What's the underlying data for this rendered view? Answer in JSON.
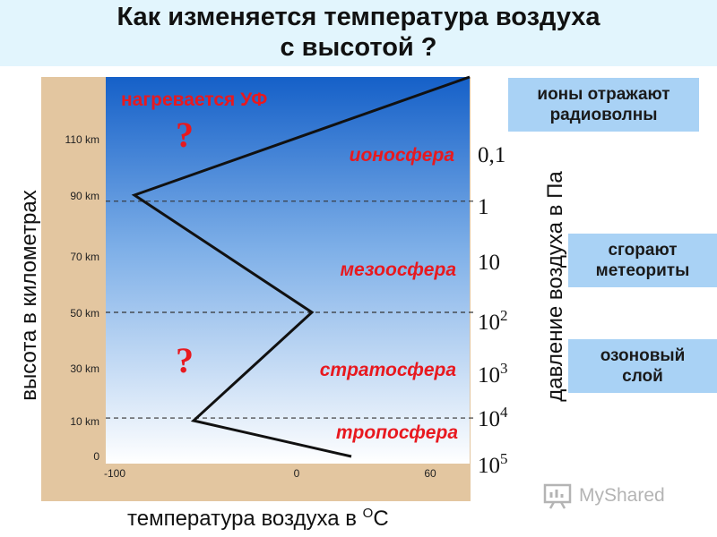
{
  "title": {
    "line1": "Как изменяется температура воздуха",
    "line2": "с высотой ?"
  },
  "diagram": {
    "y_axis_label": "высота в километрах",
    "x_axis_label": "температура воздуха в",
    "x_axis_unit_sup": "О",
    "x_axis_unit": "С",
    "pressure_axis_label": "давление воздуха в Па",
    "altitude_ticks": [
      "0",
      "10 km",
      "30 km",
      "50 km",
      "70 km",
      "90 km",
      "110 km"
    ],
    "temperature_ticks": [
      "-100",
      "0",
      "60"
    ],
    "layers": [
      "ионосфера",
      "мезоосфера",
      "стратосфера",
      "тропосфера"
    ],
    "uv_label": "нагревается УФ",
    "question_mark": "?",
    "temperature_profile": [
      {
        "temperature": 20,
        "altitude_km": 0
      },
      {
        "temperature": -60,
        "altitude_km": 10
      },
      {
        "temperature": 0,
        "altitude_km": 50
      },
      {
        "temperature": -90,
        "altitude_km": 90
      },
      {
        "temperature": 80,
        "altitude_km": 135
      }
    ],
    "boundary_altitudes_km": [
      11,
      50,
      88
    ],
    "pressure_labels": [
      {
        "base": "0,1",
        "exp": ""
      },
      {
        "base": "1",
        "exp": ""
      },
      {
        "base": "10",
        "exp": ""
      },
      {
        "base": "10",
        "exp": "2"
      },
      {
        "base": "10",
        "exp": "3"
      },
      {
        "base": "10",
        "exp": "4"
      },
      {
        "base": "10",
        "exp": "5"
      }
    ],
    "boxes": {
      "ions": [
        "ионы отражают",
        "радиоволны"
      ],
      "meteors": [
        "сгорают",
        "метеориты"
      ],
      "ozone": [
        "озоновый",
        "слой"
      ]
    },
    "colors": {
      "frame": "#e3c6a0",
      "sky_top": "#1560c8",
      "sky_bottom": "#ffffff",
      "layer_text": "#e8191f",
      "box": "#a9d2f5"
    }
  },
  "watermark": "MyShared"
}
